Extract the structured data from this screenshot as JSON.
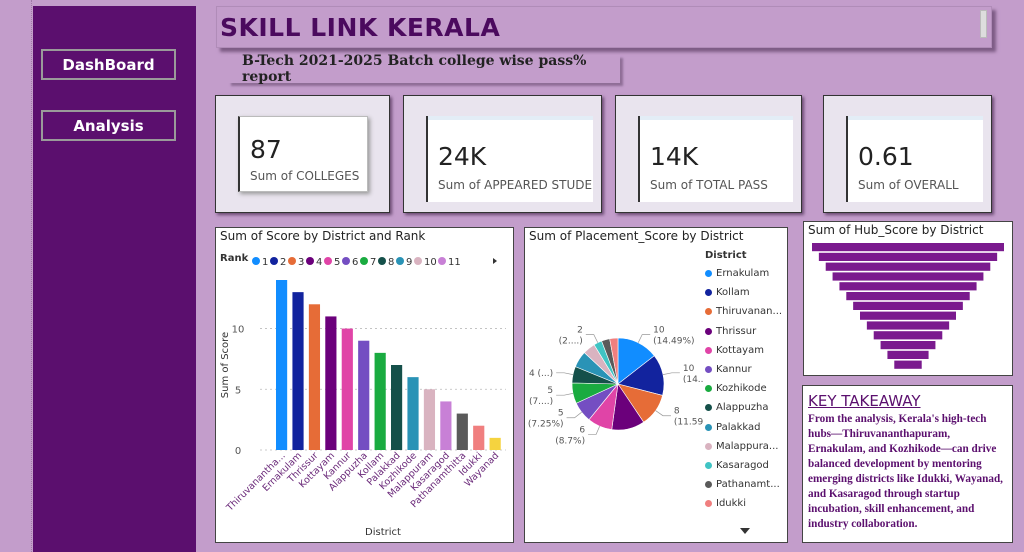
{
  "sidebar": {
    "items": [
      {
        "label": "DashBoard"
      },
      {
        "label": "Analysis"
      }
    ]
  },
  "header": {
    "title": "SKILL LINK KERALA",
    "subtitle": "B-Tech 2021-2025 Batch college wise pass% report"
  },
  "kpis": [
    {
      "value": "87",
      "label": "Sum of COLLEGES"
    },
    {
      "value": "24K",
      "label": "Sum of APPEARED STUDE"
    },
    {
      "value": "14K",
      "label": "Sum of TOTAL PASS"
    },
    {
      "value": "0.61",
      "label": "Sum of OVERALL"
    }
  ],
  "takeaway": {
    "title": "KEY TAKEAWAY",
    "text": "From the analysis, Kerala's high-tech hubs—Thiruvananthapuram, Ernakulam, and Kozhikode—can drive balanced development by mentoring emerging districts like Idukki, Wayanad, and Kasaragod through startup incubation, skill enhancement, and industry collaboration."
  },
  "chart_data": [
    {
      "type": "bar",
      "title": "Sum of Score by District and Rank",
      "legend_title": "Rank",
      "legend": [
        "1",
        "2",
        "3",
        "4",
        "5",
        "6",
        "7",
        "8",
        "9",
        "10",
        "11"
      ],
      "xlabel": "District",
      "ylabel": "Sum of Score",
      "yticks": [
        0,
        5,
        10
      ],
      "ylim": [
        0,
        14
      ],
      "grid": true,
      "categories": [
        "Thiruvanantha...",
        "Ernakulam",
        "Thrissur",
        "Kottayam",
        "Kannur",
        "Alappuzha",
        "Kollam",
        "Palakkad",
        "Kozhikode",
        "Malappuram",
        "Kasaragod",
        "Pathanamthitta",
        "Idukki",
        "Wayanad"
      ],
      "values": [
        14,
        13,
        12,
        11,
        10,
        9,
        8,
        7,
        6,
        5,
        4,
        3,
        2,
        1
      ],
      "colors": [
        "#118dff",
        "#12239e",
        "#e66c37",
        "#6b007b",
        "#e044a7",
        "#744ec2",
        "#1aab40",
        "#15504a",
        "#2a93b6",
        "#d9b3c0",
        "#c880d6",
        "#5a5a5a",
        "#f07f7f",
        "#f5d33f"
      ]
    },
    {
      "type": "pie",
      "title": "Sum of Placement_Score by District",
      "legend_title": "District",
      "legend": [
        "Ernakulam",
        "Kollam",
        "Thiruvanan...",
        "Thrissur",
        "Kottayam",
        "Kannur",
        "Kozhikode",
        "Alappuzha",
        "Palakkad",
        "Malappura...",
        "Kasaragod",
        "Pathanamt...",
        "Idukki"
      ],
      "values": [
        10,
        10,
        8,
        8,
        6,
        5,
        5,
        4,
        4,
        3,
        2,
        2,
        2
      ],
      "data_labels": [
        "10 (14.49%)",
        "10 (14....)",
        "8 (11.59%)",
        "",
        "6 (8.7%)",
        "5 (7.25%)",
        "5 (7....)",
        "4 (...)",
        "",
        "",
        "2 (2....)",
        "",
        ""
      ],
      "colors": [
        "#118dff",
        "#12239e",
        "#e66c37",
        "#6b007b",
        "#e044a7",
        "#744ec2",
        "#1aab40",
        "#15504a",
        "#2a93b6",
        "#d9b3c0",
        "#40c4c4",
        "#5a5a5a",
        "#f07f7f"
      ]
    },
    {
      "type": "bar",
      "orientation": "funnel",
      "title": "Sum of Hub_Score by District",
      "values": [
        14,
        13,
        12,
        11,
        10,
        9,
        8,
        7,
        6,
        5,
        4,
        3,
        2
      ],
      "color": "#7a1a8e"
    }
  ]
}
